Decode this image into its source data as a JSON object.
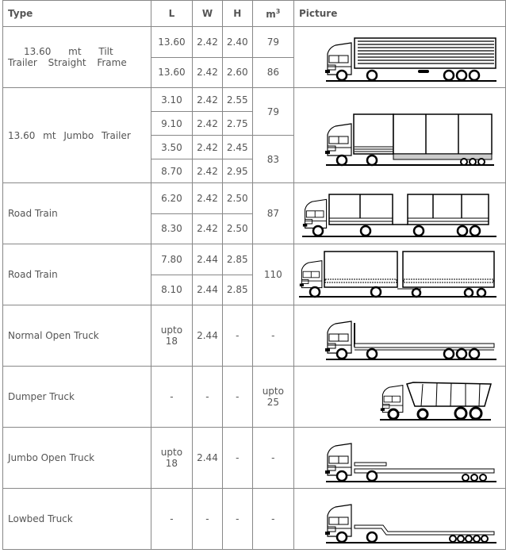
{
  "headers": {
    "type": "Type",
    "l": "L",
    "w": "W",
    "h": "H",
    "m3": "m",
    "m3_sup": "3",
    "picture": "Picture"
  },
  "rows": [
    {
      "type_line1": "13.60 mt Tilt",
      "type_line2": "Trailer Straight Frame",
      "sub": [
        {
          "l": "13.60",
          "w": "2.42",
          "h": "2.40",
          "m3": "79"
        },
        {
          "l": "13.60",
          "w": "2.42",
          "h": "2.60",
          "m3": "86"
        }
      ],
      "picture": "tilt-trailer-truck-icon"
    },
    {
      "type": "13.60 mt Jumbo Trailer",
      "sub": [
        {
          "l": "3.10",
          "w": "2.42",
          "h": "2.55"
        },
        {
          "l": "9.10",
          "w": "2.42",
          "h": "2.75"
        },
        {
          "l": "3.50",
          "w": "2.42",
          "h": "2.45"
        },
        {
          "l": "8.70",
          "w": "2.42",
          "h": "2.95"
        }
      ],
      "m3": [
        "79",
        "83"
      ],
      "picture": "jumbo-trailer-truck-icon"
    },
    {
      "type": "Road Train",
      "sub": [
        {
          "l": "6.20",
          "w": "2.42",
          "h": "2.50"
        },
        {
          "l": "8.30",
          "w": "2.42",
          "h": "2.50"
        }
      ],
      "m3": "87",
      "picture": "road-train-truck-icon"
    },
    {
      "type": "Road Train",
      "sub": [
        {
          "l": "7.80",
          "w": "2.44",
          "h": "2.85"
        },
        {
          "l": "8.10",
          "w": "2.44",
          "h": "2.85"
        }
      ],
      "m3": "110",
      "picture": "road-train-curtain-truck-icon"
    },
    {
      "type": "Normal Open Truck",
      "l": "upto 18",
      "w": "2.44",
      "h": "-",
      "m3": "-",
      "picture": "open-truck-icon"
    },
    {
      "type": "Dumper Truck",
      "l": "-",
      "w": "-",
      "h": "-",
      "m3": "upto 25",
      "picture": "dumper-truck-icon"
    },
    {
      "type": "Jumbo Open Truck",
      "l": "upto 18",
      "w": "2.44",
      "h": "-",
      "m3": "-",
      "picture": "jumbo-open-truck-icon"
    },
    {
      "type": "Lowbed Truck",
      "l": "-",
      "w": "-",
      "h": "-",
      "m3": "-",
      "picture": "lowbed-truck-icon"
    }
  ]
}
